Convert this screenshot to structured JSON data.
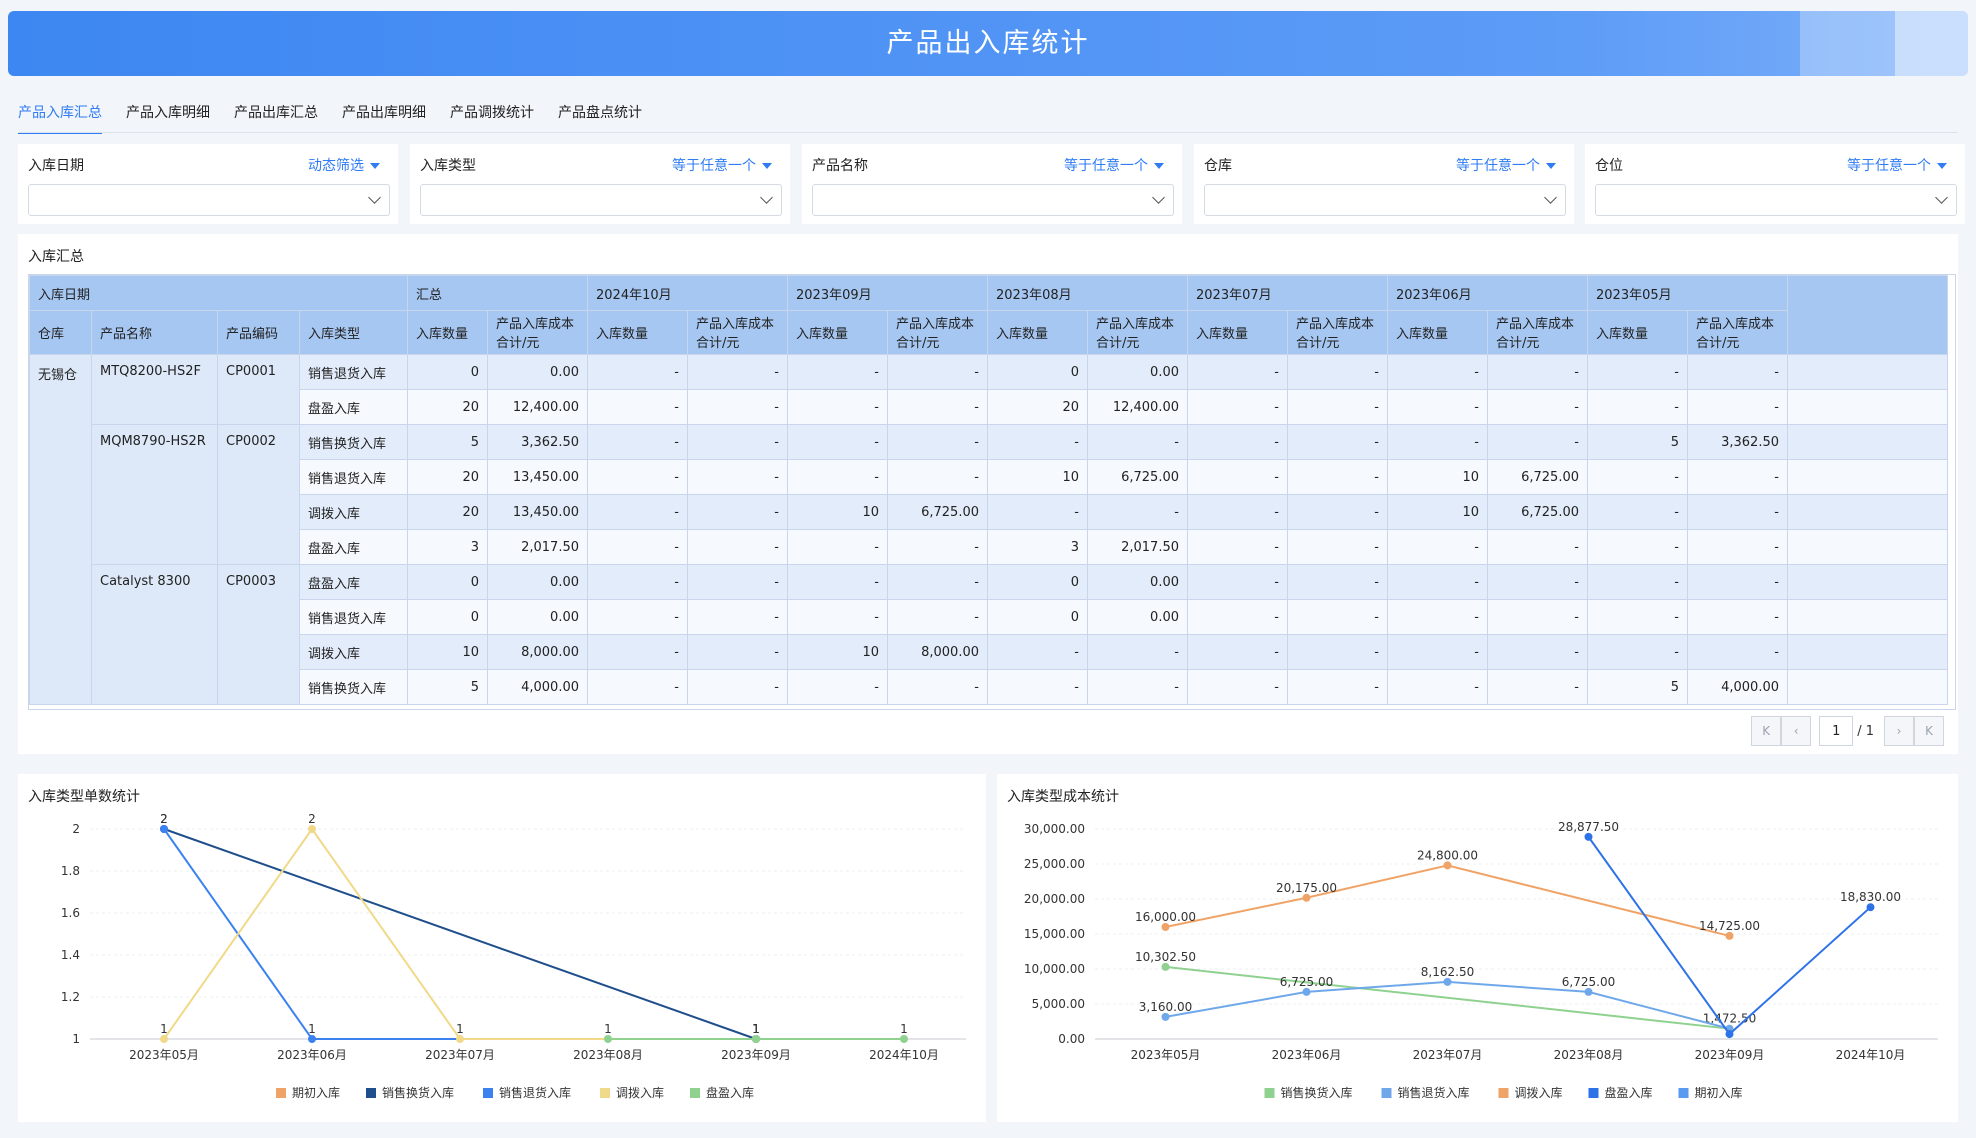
{
  "page": {
    "title": "产品出入库统计"
  },
  "tabs": [
    {
      "label": "产品入库汇总",
      "active": true
    },
    {
      "label": "产品入库明细",
      "active": false
    },
    {
      "label": "产品出库汇总",
      "active": false
    },
    {
      "label": "产品出库明细",
      "active": false
    },
    {
      "label": "产品调拨统计",
      "active": false
    },
    {
      "label": "产品盘点统计",
      "active": false
    }
  ],
  "filters": [
    {
      "label": "入库日期",
      "mode": "动态筛选",
      "value": ""
    },
    {
      "label": "入库类型",
      "mode": "等于任意一个",
      "value": ""
    },
    {
      "label": "产品名称",
      "mode": "等于任意一个",
      "value": ""
    },
    {
      "label": "仓库",
      "mode": "等于任意一个",
      "value": ""
    },
    {
      "label": "仓位",
      "mode": "等于任意一个",
      "value": ""
    }
  ],
  "summary": {
    "title": "入库汇总",
    "header_date": "入库日期",
    "header_cols": [
      "仓库",
      "产品名称",
      "产品编码",
      "入库类型"
    ],
    "periods": [
      "汇总",
      "2024年10月",
      "2023年09月",
      "2023年08月",
      "2023年07月",
      "2023年06月",
      "2023年05月"
    ],
    "metric_qty": "入库数量",
    "metric_cost": "产品入库成本合计/元",
    "warehouse": "无锡仓",
    "products": [
      {
        "name": "MTQ8200-HS2F",
        "code": "CP0001",
        "rows": [
          {
            "type": "销售退货入库",
            "vals": [
              "0",
              "0.00",
              "-",
              "-",
              "-",
              "-",
              "0",
              "0.00",
              "-",
              "-",
              "-",
              "-",
              "-",
              "-"
            ]
          },
          {
            "type": "盘盈入库",
            "vals": [
              "20",
              "12,400.00",
              "-",
              "-",
              "-",
              "-",
              "20",
              "12,400.00",
              "-",
              "-",
              "-",
              "-",
              "-",
              "-"
            ]
          }
        ]
      },
      {
        "name": "MQM8790-HS2R",
        "code": "CP0002",
        "rows": [
          {
            "type": "销售换货入库",
            "vals": [
              "5",
              "3,362.50",
              "-",
              "-",
              "-",
              "-",
              "-",
              "-",
              "-",
              "-",
              "-",
              "-",
              "5",
              "3,362.50"
            ]
          },
          {
            "type": "销售退货入库",
            "vals": [
              "20",
              "13,450.00",
              "-",
              "-",
              "-",
              "-",
              "10",
              "6,725.00",
              "-",
              "-",
              "10",
              "6,725.00",
              "-",
              "-"
            ]
          },
          {
            "type": "调拨入库",
            "vals": [
              "20",
              "13,450.00",
              "-",
              "-",
              "10",
              "6,725.00",
              "-",
              "-",
              "-",
              "-",
              "10",
              "6,725.00",
              "-",
              "-"
            ]
          },
          {
            "type": "盘盈入库",
            "vals": [
              "3",
              "2,017.50",
              "-",
              "-",
              "-",
              "-",
              "3",
              "2,017.50",
              "-",
              "-",
              "-",
              "-",
              "-",
              "-"
            ]
          }
        ]
      },
      {
        "name": "Catalyst 8300",
        "code": "CP0003",
        "rows": [
          {
            "type": "盘盈入库",
            "vals": [
              "0",
              "0.00",
              "-",
              "-",
              "-",
              "-",
              "0",
              "0.00",
              "-",
              "-",
              "-",
              "-",
              "-",
              "-"
            ]
          },
          {
            "type": "销售退货入库",
            "vals": [
              "0",
              "0.00",
              "-",
              "-",
              "-",
              "-",
              "0",
              "0.00",
              "-",
              "-",
              "-",
              "-",
              "-",
              "-"
            ]
          },
          {
            "type": "调拨入库",
            "vals": [
              "10",
              "8,000.00",
              "-",
              "-",
              "10",
              "8,000.00",
              "-",
              "-",
              "-",
              "-",
              "-",
              "-",
              "-",
              "-"
            ]
          },
          {
            "type": "销售换货入库",
            "vals": [
              "5",
              "4,000.00",
              "-",
              "-",
              "-",
              "-",
              "-",
              "-",
              "-",
              "-",
              "-",
              "-",
              "5",
              "4,000.00"
            ]
          }
        ]
      }
    ],
    "pager": {
      "first": "K",
      "prev": "‹",
      "page": "1",
      "total": "/ 1",
      "next": "›",
      "last": "K"
    }
  },
  "chart_data": [
    {
      "type": "line",
      "title": "入库类型单数统计",
      "categories": [
        "2023年05月",
        "2023年06月",
        "2023年07月",
        "2023年08月",
        "2023年09月",
        "2024年10月"
      ],
      "ylim": [
        1,
        2
      ],
      "yticks": [
        "1",
        "1.2",
        "1.4",
        "1.6",
        "1.8",
        "2"
      ],
      "legend_position": "bottom",
      "legend": [
        "期初入库",
        "销售换货入库",
        "销售退货入库",
        "调拨入库",
        "盘盈入库"
      ],
      "series": [
        {
          "name": "销售换货入库",
          "color": "#1f4e8c",
          "points": [
            [
              0,
              2
            ],
            [
              4,
              1
            ]
          ],
          "labels": [
            "2",
            "1"
          ]
        },
        {
          "name": "销售退货入库",
          "color": "#3b82f0",
          "points": [
            [
              0,
              2
            ],
            [
              1,
              1
            ],
            [
              4,
              1
            ]
          ],
          "labels": [
            "2",
            "1",
            "1"
          ]
        },
        {
          "name": "调拨入库",
          "color": "#f0d989",
          "points": [
            [
              0,
              1
            ],
            [
              1,
              2
            ],
            [
              2,
              1
            ],
            [
              4,
              1
            ]
          ],
          "labels": [
            "1",
            "2",
            "1",
            "1"
          ]
        },
        {
          "name": "盘盈入库",
          "color": "#8fd18f",
          "points": [
            [
              3,
              1
            ],
            [
              4,
              1
            ],
            [
              5,
              1
            ]
          ],
          "labels": [
            "1",
            "1",
            "1"
          ]
        },
        {
          "name": "期初入库",
          "color": "#f0a366",
          "points": [],
          "labels": []
        }
      ]
    },
    {
      "type": "line",
      "title": "入库类型成本统计",
      "categories": [
        "2023年05月",
        "2023年06月",
        "2023年07月",
        "2023年08月",
        "2023年09月",
        "2024年10月"
      ],
      "ylim": [
        0,
        30000
      ],
      "yticks": [
        "0.00",
        "5,000.00",
        "10,000.00",
        "15,000.00",
        "20,000.00",
        "25,000.00",
        "30,000.00"
      ],
      "legend_position": "bottom",
      "legend": [
        "销售换货入库",
        "销售退货入库",
        "调拨入库",
        "盘盈入库",
        "期初入库"
      ],
      "series": [
        {
          "name": "调拨入库",
          "color": "#f0a366",
          "points": [
            [
              0,
              16000
            ],
            [
              1,
              20175
            ],
            [
              2,
              24800
            ],
            [
              4,
              14725
            ]
          ],
          "labels": [
            "16,000.00",
            "20,175.00",
            "24,800.00",
            "14,725.00"
          ]
        },
        {
          "name": "销售换货入库",
          "color": "#8fd18f",
          "points": [
            [
              0,
              10302.5
            ],
            [
              4,
              1472.5
            ]
          ],
          "labels": [
            "10,302.50",
            "1,472.50"
          ]
        },
        {
          "name": "销售退货入库",
          "color": "#6fa8ea",
          "points": [
            [
              0,
              3160
            ],
            [
              1,
              6725
            ],
            [
              2,
              8162.5
            ],
            [
              3,
              6725
            ],
            [
              4,
              1472.5
            ]
          ],
          "labels": [
            "3,160.00",
            "6,725.00",
            "8,162.50",
            "6,725.00",
            ""
          ]
        },
        {
          "name": "盘盈入库",
          "color": "#2e72e8",
          "points": [
            [
              3,
              28877.5
            ],
            [
              4,
              700
            ],
            [
              5,
              18830
            ]
          ],
          "labels": [
            "28,877.50",
            "",
            "18,830.00"
          ]
        },
        {
          "name": "期初入库",
          "color": "#5a9af0",
          "points": [],
          "labels": []
        }
      ]
    }
  ]
}
